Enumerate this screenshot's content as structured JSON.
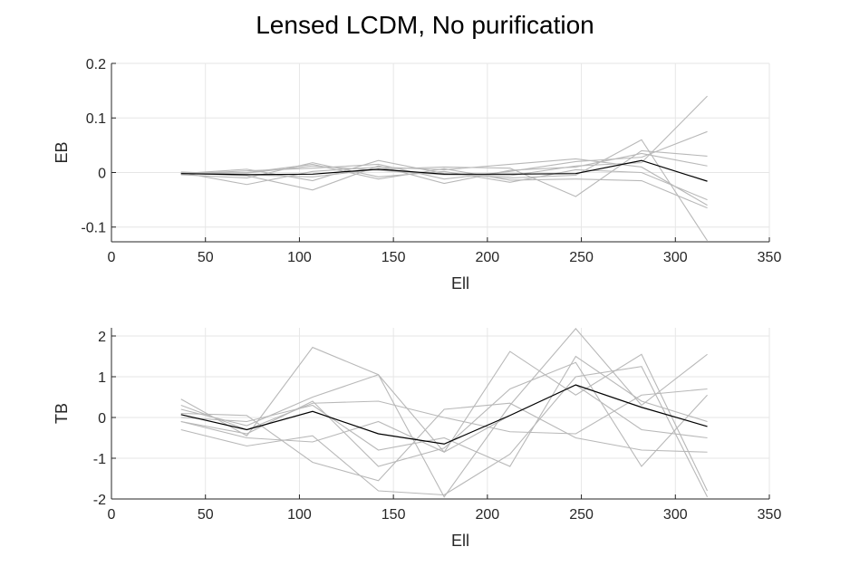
{
  "figure": {
    "title": "Lensed LCDM, No purification"
  },
  "colors": {
    "realization": "#b8b8b8",
    "mean": "#000000",
    "grid": "#e6e6e6",
    "axis": "#262626"
  },
  "chart_data": [
    {
      "type": "line",
      "ylabel": "EB",
      "xlabel": "Ell",
      "xlim": [
        0,
        350
      ],
      "ylim": [
        -0.127,
        0.2
      ],
      "xticks": [
        0,
        50,
        100,
        150,
        200,
        250,
        300,
        350
      ],
      "xtick_labels": [
        "0",
        "50",
        "100",
        "150",
        "200",
        "250",
        "300",
        "350"
      ],
      "yticks": [
        -0.1,
        0,
        0.1,
        0.2
      ],
      "ytick_labels": [
        "-0.1",
        "0",
        "0.1",
        "0.2"
      ],
      "grid": true,
      "x": [
        37,
        72,
        107,
        142,
        177,
        212,
        247,
        282,
        317
      ],
      "realizations": [
        [
          -0.002,
          -0.001,
          0.012,
          0.004,
          -0.004,
          -0.006,
          0.012,
          0.018,
          0.14
        ],
        [
          -0.003,
          0.003,
          0.008,
          0.015,
          -0.012,
          0.002,
          0.02,
          0.028,
          0.075
        ],
        [
          0.0,
          -0.022,
          0.002,
          0.01,
          0.005,
          0.015,
          0.025,
          0.01,
          -0.06
        ],
        [
          -0.002,
          0.006,
          -0.015,
          0.022,
          -0.002,
          -0.01,
          -0.005,
          0.06,
          -0.125
        ],
        [
          0.001,
          -0.004,
          -0.008,
          0.006,
          0.01,
          0.008,
          -0.044,
          0.04,
          0.03
        ],
        [
          -0.004,
          -0.01,
          0.018,
          -0.008,
          0.002,
          -0.018,
          0.005,
          0.0,
          -0.05
        ],
        [
          -0.001,
          -0.006,
          -0.032,
          0.012,
          -0.02,
          0.004,
          0.01,
          0.035,
          0.012
        ],
        [
          -0.002,
          0.0,
          0.015,
          -0.012,
          0.007,
          -0.014,
          -0.012,
          -0.015,
          -0.065
        ]
      ],
      "mean": [
        -0.002,
        -0.004,
        -0.003,
        0.006,
        -0.003,
        -0.003,
        -0.002,
        0.022,
        -0.016
      ]
    },
    {
      "type": "line",
      "ylabel": "TB",
      "xlabel": "Ell",
      "xlim": [
        0,
        350
      ],
      "ylim": [
        -2,
        2.2
      ],
      "xticks": [
        0,
        50,
        100,
        150,
        200,
        250,
        300,
        350
      ],
      "xtick_labels": [
        "0",
        "50",
        "100",
        "150",
        "200",
        "250",
        "300",
        "350"
      ],
      "yticks": [
        -2,
        -1,
        0,
        1,
        2
      ],
      "ytick_labels": [
        "-2",
        "-1",
        "0",
        "1",
        "2"
      ],
      "grid": true,
      "x": [
        37,
        72,
        107,
        142,
        177,
        212,
        247,
        282,
        317
      ],
      "realizations": [
        [
          0.45,
          -0.45,
          1.72,
          1.05,
          -0.85,
          1.62,
          0.55,
          1.55,
          -1.8
        ],
        [
          0.2,
          -0.2,
          0.5,
          1.05,
          -1.95,
          0.3,
          2.18,
          0.3,
          1.55
        ],
        [
          -0.1,
          -0.4,
          0.4,
          -1.2,
          -0.75,
          0.7,
          1.35,
          -1.2,
          0.55
        ],
        [
          -0.3,
          -0.7,
          -0.45,
          -1.8,
          -1.9,
          -0.9,
          1.0,
          1.25,
          -1.95
        ],
        [
          0.1,
          0.05,
          -1.1,
          -1.55,
          0.2,
          0.35,
          -0.5,
          -0.8,
          -0.85
        ],
        [
          0.3,
          -0.3,
          0.35,
          0.4,
          0.0,
          -0.35,
          -0.4,
          0.55,
          0.7
        ],
        [
          0.0,
          -0.1,
          0.3,
          -0.8,
          -0.5,
          -1.2,
          1.5,
          0.4,
          -0.1
        ],
        [
          -0.1,
          -0.5,
          -0.6,
          -0.1,
          -0.85,
          0.05,
          0.8,
          -0.3,
          -0.5
        ]
      ],
      "mean": [
        0.07,
        -0.3,
        0.15,
        -0.4,
        -0.65,
        0.05,
        0.8,
        0.25,
        -0.22
      ]
    }
  ]
}
